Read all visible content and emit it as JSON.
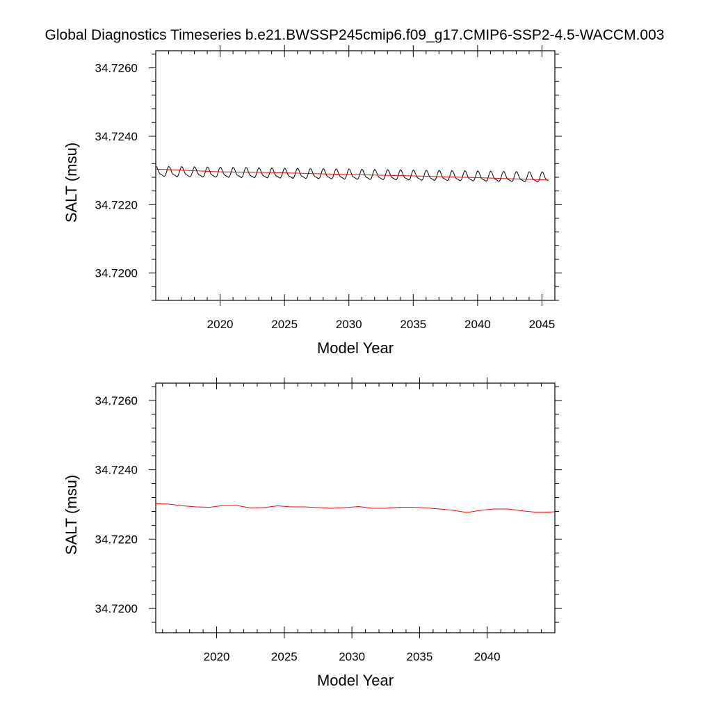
{
  "title": "Global Diagnostics Timeseries b.e21.BWSSP245cmip6.f09_g17.CMIP6-SSP2-4.5-WACCM.003",
  "colors": {
    "monthly": "#000000",
    "annual": "#ff0000",
    "frame": "#000000"
  },
  "chart_data": [
    {
      "type": "line",
      "xlabel": "Model Year",
      "ylabel": "SALT (msu)",
      "xlim": [
        2015.0,
        2046.0
      ],
      "ylim": [
        34.7192,
        34.7265
      ],
      "xticks": [
        2020,
        2025,
        2030,
        2035,
        2040,
        2045
      ],
      "xtick_labels": [
        "2020",
        "2025",
        "2030",
        "2035",
        "2040",
        "2045"
      ],
      "yticks": [
        34.72,
        34.722,
        34.724,
        34.726
      ],
      "ytick_labels": [
        "34.7200",
        "34.7220",
        "34.7240",
        "34.7260"
      ],
      "series": [
        {
          "style": "monthly",
          "x_start": 2015.0,
          "x_end": 2045.5,
          "mean_start": 34.72295,
          "mean_end": 34.72278,
          "amplitude": 0.00018
        },
        {
          "style": "annual",
          "x": [
            2015.0,
            2020.0,
            2025.0,
            2030.0,
            2035.0,
            2040.0,
            2045.5
          ],
          "y": [
            34.72304,
            34.72296,
            34.72293,
            34.72288,
            34.72284,
            34.72279,
            34.72272
          ]
        }
      ]
    },
    {
      "type": "line",
      "xlabel": "Model Year",
      "ylabel": "SALT (msu)",
      "xlim": [
        2015.5,
        2045.0
      ],
      "ylim": [
        34.7193,
        34.7265
      ],
      "xticks": [
        2020,
        2025,
        2030,
        2035,
        2040
      ],
      "xtick_labels": [
        "2020",
        "2025",
        "2030",
        "2035",
        "2040"
      ],
      "yticks": [
        34.72,
        34.722,
        34.724,
        34.726
      ],
      "ytick_labels": [
        "34.7200",
        "34.7220",
        "34.7240",
        "34.7260"
      ],
      "series": [
        {
          "style": "annual",
          "x": [
            2015.5,
            2016.5,
            2017.5,
            2018.5,
            2019.5,
            2020.5,
            2021.5,
            2022.5,
            2023.5,
            2024.5,
            2025.5,
            2026.5,
            2027.5,
            2028.5,
            2029.5,
            2030.5,
            2031.5,
            2032.5,
            2033.5,
            2034.5,
            2035.5,
            2036.5,
            2037.5,
            2038.5,
            2039.5,
            2040.5,
            2041.5,
            2042.5,
            2043.5,
            2044.5,
            2045.0
          ],
          "y": [
            34.72302,
            34.72301,
            34.72296,
            34.72293,
            34.72292,
            34.72297,
            34.72297,
            34.7229,
            34.72291,
            34.72296,
            34.72293,
            34.72293,
            34.72291,
            34.72289,
            34.72291,
            34.72294,
            34.72289,
            34.72289,
            34.72292,
            34.72292,
            34.7229,
            34.72287,
            34.72283,
            34.72277,
            34.72283,
            34.72287,
            34.72287,
            34.72282,
            34.72278,
            34.72278,
            34.72279
          ]
        }
      ]
    }
  ]
}
